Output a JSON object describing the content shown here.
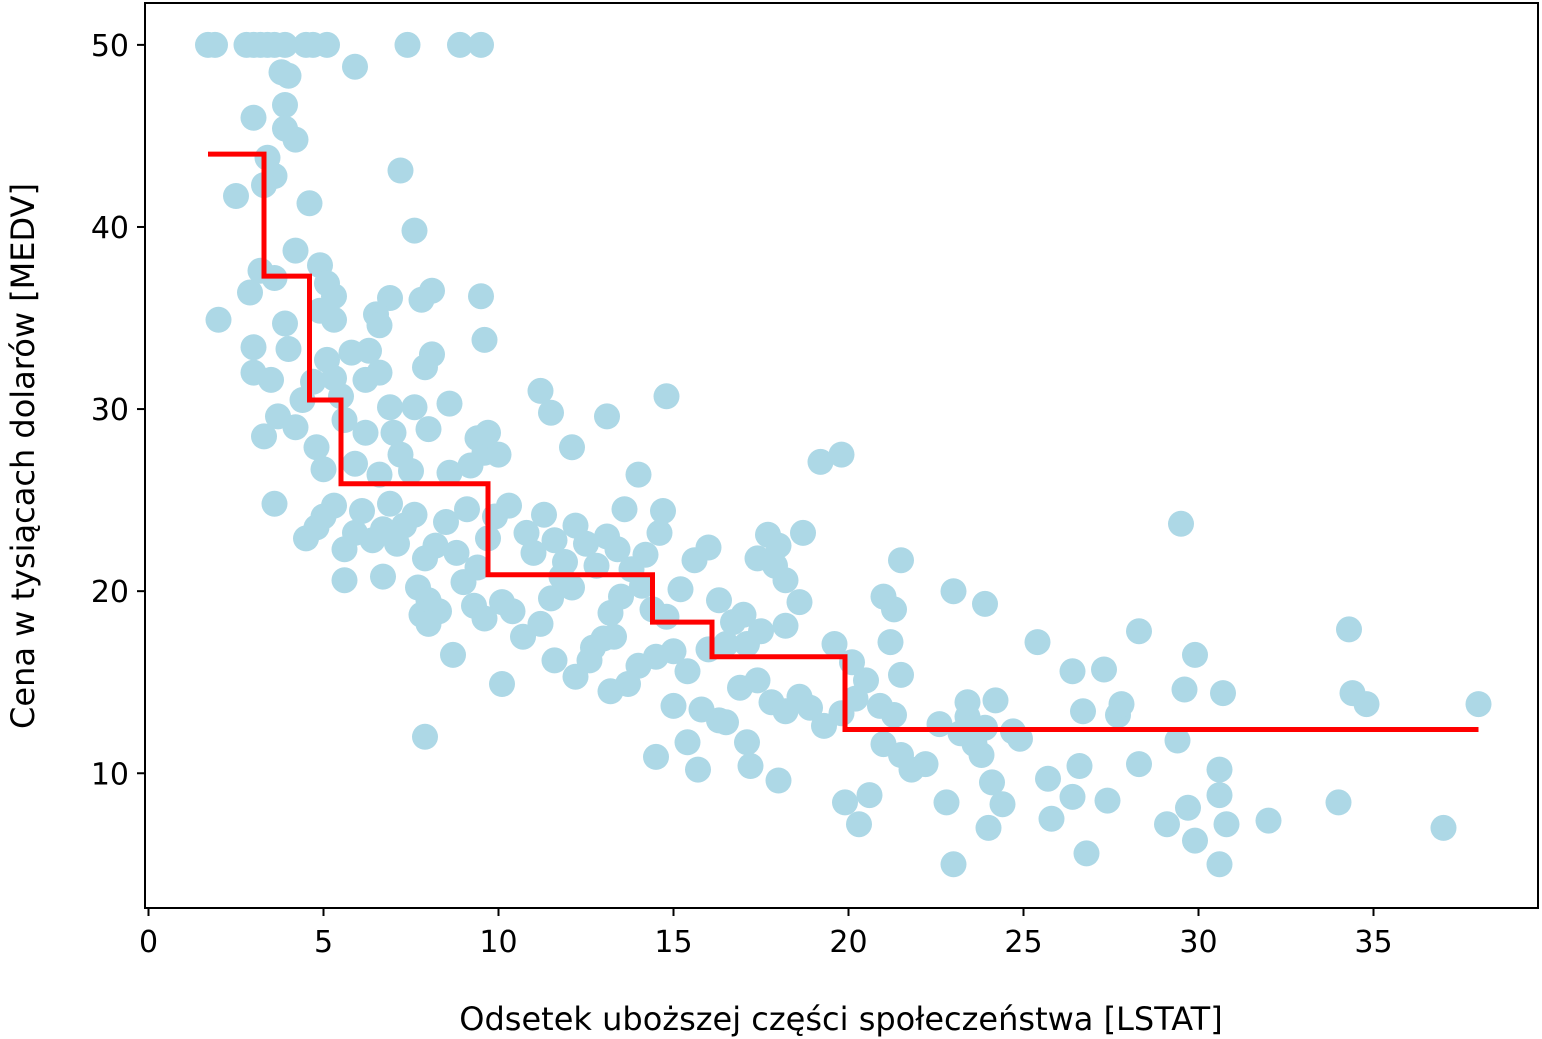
{
  "chart_data": {
    "type": "scatter",
    "title": "",
    "xlabel": "Odsetek uboższej części społeczeństwa [LSTAT]",
    "ylabel": "Cena w tysiącach dolarów [MEDV]",
    "xlim": [
      -0.1,
      39.7
    ],
    "ylim": [
      2.6,
      52.3
    ],
    "xticks": [
      0,
      5,
      10,
      15,
      20,
      25,
      30,
      35
    ],
    "yticks": [
      10,
      20,
      30,
      40,
      50
    ],
    "grid": false,
    "legend": "none",
    "series": [
      {
        "kind": "scatter",
        "color": "#add8e6",
        "points": [
          [
            1.7,
            50
          ],
          [
            1.9,
            50
          ],
          [
            2.8,
            50
          ],
          [
            3.0,
            50
          ],
          [
            3.2,
            50
          ],
          [
            3.4,
            50
          ],
          [
            3.6,
            50
          ],
          [
            3.9,
            50
          ],
          [
            4.5,
            50
          ],
          [
            4.7,
            50
          ],
          [
            5.1,
            50
          ],
          [
            7.4,
            50
          ],
          [
            8.9,
            50
          ],
          [
            9.5,
            50
          ],
          [
            5.9,
            48.8
          ],
          [
            3.8,
            48.5
          ],
          [
            4.0,
            48.3
          ],
          [
            3.9,
            46.7
          ],
          [
            3.0,
            46.0
          ],
          [
            3.9,
            45.4
          ],
          [
            4.2,
            44.8
          ],
          [
            3.4,
            43.8
          ],
          [
            3.6,
            42.8
          ],
          [
            3.3,
            42.3
          ],
          [
            2.5,
            41.7
          ],
          [
            7.2,
            43.1
          ],
          [
            4.6,
            41.3
          ],
          [
            7.6,
            39.8
          ],
          [
            4.2,
            38.7
          ],
          [
            4.9,
            37.9
          ],
          [
            3.2,
            37.6
          ],
          [
            3.6,
            37.2
          ],
          [
            5.1,
            36.9
          ],
          [
            5.3,
            36.2
          ],
          [
            2.9,
            36.4
          ],
          [
            6.9,
            36.1
          ],
          [
            7.8,
            36.0
          ],
          [
            8.1,
            36.5
          ],
          [
            9.5,
            36.2
          ],
          [
            4.9,
            35.4
          ],
          [
            5.3,
            34.9
          ],
          [
            3.9,
            34.7
          ],
          [
            6.5,
            35.2
          ],
          [
            6.6,
            34.6
          ],
          [
            9.6,
            33.8
          ],
          [
            2.0,
            34.9
          ],
          [
            3.0,
            33.4
          ],
          [
            4.0,
            33.3
          ],
          [
            5.1,
            32.7
          ],
          [
            5.8,
            33.1
          ],
          [
            6.3,
            33.2
          ],
          [
            6.6,
            32.0
          ],
          [
            7.9,
            32.3
          ],
          [
            8.1,
            33.0
          ],
          [
            3.0,
            32.0
          ],
          [
            3.5,
            31.6
          ],
          [
            4.7,
            31.5
          ],
          [
            6.2,
            31.6
          ],
          [
            5.3,
            31.7
          ],
          [
            5.5,
            30.7
          ],
          [
            4.4,
            30.5
          ],
          [
            3.7,
            29.6
          ],
          [
            4.2,
            29.0
          ],
          [
            6.9,
            30.1
          ],
          [
            7.6,
            30.1
          ],
          [
            8.6,
            30.3
          ],
          [
            5.6,
            29.4
          ],
          [
            6.2,
            28.7
          ],
          [
            7.0,
            28.7
          ],
          [
            8.0,
            28.9
          ],
          [
            9.4,
            28.4
          ],
          [
            3.3,
            28.5
          ],
          [
            4.8,
            27.9
          ],
          [
            5.0,
            26.7
          ],
          [
            5.9,
            27.0
          ],
          [
            6.6,
            26.4
          ],
          [
            7.2,
            27.5
          ],
          [
            7.5,
            26.6
          ],
          [
            8.6,
            26.5
          ],
          [
            9.2,
            26.9
          ],
          [
            9.6,
            27.6
          ],
          [
            10.0,
            27.5
          ],
          [
            9.7,
            28.7
          ],
          [
            11.2,
            31.0
          ],
          [
            11.5,
            29.8
          ],
          [
            13.1,
            29.6
          ],
          [
            12.1,
            27.9
          ],
          [
            14.8,
            30.7
          ],
          [
            14.0,
            26.4
          ],
          [
            3.6,
            24.8
          ],
          [
            4.5,
            22.9
          ],
          [
            4.8,
            23.5
          ],
          [
            5.0,
            24.1
          ],
          [
            5.3,
            24.7
          ],
          [
            5.6,
            22.3
          ],
          [
            5.9,
            23.2
          ],
          [
            6.1,
            24.4
          ],
          [
            6.4,
            22.8
          ],
          [
            6.7,
            23.4
          ],
          [
            6.9,
            24.8
          ],
          [
            7.1,
            22.6
          ],
          [
            7.3,
            23.6
          ],
          [
            7.6,
            24.2
          ],
          [
            7.9,
            21.8
          ],
          [
            8.2,
            22.5
          ],
          [
            8.5,
            23.8
          ],
          [
            8.8,
            22.1
          ],
          [
            9.1,
            24.5
          ],
          [
            9.4,
            21.3
          ],
          [
            9.7,
            22.9
          ],
          [
            9.9,
            24.1
          ],
          [
            10.3,
            24.7
          ],
          [
            10.8,
            23.2
          ],
          [
            11.0,
            22.1
          ],
          [
            11.3,
            24.2
          ],
          [
            11.6,
            22.8
          ],
          [
            11.9,
            21.6
          ],
          [
            12.2,
            23.6
          ],
          [
            12.5,
            22.6
          ],
          [
            12.8,
            21.4
          ],
          [
            13.1,
            23.0
          ],
          [
            13.4,
            22.3
          ],
          [
            13.6,
            24.5
          ],
          [
            14.2,
            22.0
          ],
          [
            14.6,
            23.2
          ],
          [
            14.7,
            24.4
          ],
          [
            5.6,
            20.6
          ],
          [
            6.7,
            20.8
          ],
          [
            8.7,
            16.5
          ],
          [
            7.9,
            12.0
          ],
          [
            7.7,
            20.2
          ],
          [
            8.0,
            19.5
          ],
          [
            8.3,
            18.9
          ],
          [
            7.8,
            18.7
          ],
          [
            8.0,
            18.2
          ],
          [
            9.0,
            20.5
          ],
          [
            9.3,
            19.2
          ],
          [
            9.6,
            18.5
          ],
          [
            10.1,
            19.4
          ],
          [
            10.4,
            18.9
          ],
          [
            10.7,
            17.5
          ],
          [
            11.2,
            18.2
          ],
          [
            11.5,
            19.6
          ],
          [
            11.8,
            20.8
          ],
          [
            12.1,
            20.2
          ],
          [
            11.6,
            16.2
          ],
          [
            12.2,
            15.3
          ],
          [
            12.7,
            16.9
          ],
          [
            13.0,
            17.4
          ],
          [
            13.2,
            18.8
          ],
          [
            13.5,
            19.7
          ],
          [
            13.8,
            21.2
          ],
          [
            14.1,
            20.3
          ],
          [
            14.4,
            19.0
          ],
          [
            14.8,
            18.6
          ],
          [
            15.2,
            20.1
          ],
          [
            15.6,
            21.7
          ],
          [
            16.0,
            22.4
          ],
          [
            16.3,
            19.5
          ],
          [
            16.7,
            18.3
          ],
          [
            17.1,
            17.1
          ],
          [
            17.4,
            21.8
          ],
          [
            17.7,
            23.1
          ],
          [
            18.0,
            22.5
          ],
          [
            18.2,
            20.6
          ],
          [
            17.9,
            21.4
          ],
          [
            18.7,
            23.2
          ],
          [
            18.6,
            19.4
          ],
          [
            18.2,
            18.1
          ],
          [
            17.5,
            17.8
          ],
          [
            17.0,
            18.7
          ],
          [
            16.5,
            17.1
          ],
          [
            16.0,
            16.8
          ],
          [
            15.4,
            15.6
          ],
          [
            15.0,
            16.7
          ],
          [
            14.5,
            16.4
          ],
          [
            14.0,
            15.9
          ],
          [
            13.3,
            17.5
          ],
          [
            12.6,
            16.2
          ],
          [
            13.7,
            14.9
          ],
          [
            13.2,
            14.5
          ],
          [
            10.1,
            14.9
          ],
          [
            15.0,
            13.7
          ],
          [
            15.8,
            13.5
          ],
          [
            16.3,
            12.9
          ],
          [
            16.9,
            14.7
          ],
          [
            17.4,
            15.1
          ],
          [
            17.8,
            13.9
          ],
          [
            18.2,
            13.4
          ],
          [
            18.6,
            14.2
          ],
          [
            18.9,
            13.6
          ],
          [
            19.3,
            12.6
          ],
          [
            19.8,
            13.3
          ],
          [
            20.2,
            14.1
          ],
          [
            20.5,
            15.1
          ],
          [
            20.9,
            13.7
          ],
          [
            21.3,
            13.2
          ],
          [
            21.5,
            15.4
          ],
          [
            21.2,
            17.2
          ],
          [
            21.0,
            19.7
          ],
          [
            21.3,
            19.0
          ],
          [
            21.5,
            21.7
          ],
          [
            19.6,
            17.1
          ],
          [
            20.1,
            16.1
          ],
          [
            16.5,
            12.8
          ],
          [
            17.1,
            11.7
          ],
          [
            15.4,
            11.7
          ],
          [
            14.5,
            10.9
          ],
          [
            15.7,
            10.2
          ],
          [
            17.2,
            10.4
          ],
          [
            18.0,
            9.6
          ],
          [
            19.9,
            8.4
          ],
          [
            20.3,
            7.2
          ],
          [
            20.6,
            8.8
          ],
          [
            21.0,
            11.6
          ],
          [
            21.5,
            11.0
          ],
          [
            21.8,
            10.2
          ],
          [
            22.2,
            10.5
          ],
          [
            22.6,
            12.7
          ],
          [
            22.8,
            8.4
          ],
          [
            23.0,
            5.0
          ],
          [
            23.2,
            12.2
          ],
          [
            23.4,
            13.1
          ],
          [
            23.6,
            11.6
          ],
          [
            23.8,
            11.0
          ],
          [
            24.0,
            7.0
          ],
          [
            24.1,
            9.5
          ],
          [
            24.2,
            14.0
          ],
          [
            24.4,
            8.3
          ],
          [
            24.7,
            12.3
          ],
          [
            24.9,
            11.9
          ],
          [
            23.0,
            20.0
          ],
          [
            23.9,
            19.3
          ],
          [
            23.4,
            13.9
          ],
          [
            23.9,
            12.5
          ],
          [
            25.4,
            17.2
          ],
          [
            25.7,
            9.7
          ],
          [
            25.8,
            7.5
          ],
          [
            26.4,
            8.7
          ],
          [
            26.4,
            15.6
          ],
          [
            26.6,
            10.4
          ],
          [
            26.7,
            13.4
          ],
          [
            26.8,
            5.6
          ],
          [
            27.3,
            15.7
          ],
          [
            27.4,
            8.5
          ],
          [
            27.7,
            13.2
          ],
          [
            27.8,
            13.8
          ],
          [
            28.3,
            17.8
          ],
          [
            28.3,
            10.5
          ],
          [
            29.1,
            7.2
          ],
          [
            29.4,
            11.8
          ],
          [
            29.6,
            14.6
          ],
          [
            29.7,
            8.1
          ],
          [
            29.9,
            16.5
          ],
          [
            29.9,
            6.3
          ],
          [
            30.6,
            10.2
          ],
          [
            30.6,
            8.8
          ],
          [
            30.7,
            14.4
          ],
          [
            30.8,
            7.2
          ],
          [
            30.6,
            5.0
          ],
          [
            29.5,
            23.7
          ],
          [
            32.0,
            7.4
          ],
          [
            34.0,
            8.4
          ],
          [
            34.4,
            14.4
          ],
          [
            34.8,
            13.8
          ],
          [
            34.3,
            17.9
          ],
          [
            37.0,
            7.0
          ],
          [
            38.0,
            13.8
          ],
          [
            19.8,
            27.5
          ],
          [
            19.2,
            27.1
          ]
        ]
      },
      {
        "kind": "step-line",
        "color": "#ff0000",
        "segments": [
          [
            1.7,
            3.3,
            44.0
          ],
          [
            3.3,
            4.6,
            37.3
          ],
          [
            4.6,
            5.5,
            30.5
          ],
          [
            5.5,
            9.7,
            25.9
          ],
          [
            9.7,
            14.4,
            20.9
          ],
          [
            14.4,
            16.1,
            18.3
          ],
          [
            16.1,
            19.9,
            16.4
          ],
          [
            19.9,
            38.0,
            12.4
          ]
        ]
      }
    ]
  }
}
